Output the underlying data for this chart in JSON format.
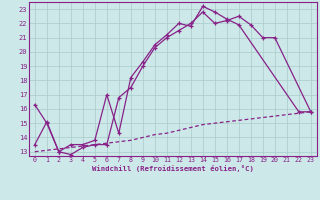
{
  "xlabel": "Windchill (Refroidissement éolien,°C)",
  "bg_color": "#cce8e8",
  "line_color": "#882288",
  "xlim": [
    -0.5,
    23.5
  ],
  "ylim": [
    12.7,
    23.5
  ],
  "xticks": [
    0,
    1,
    2,
    3,
    4,
    5,
    6,
    7,
    8,
    9,
    10,
    11,
    12,
    13,
    14,
    15,
    16,
    17,
    18,
    19,
    20,
    21,
    22,
    23
  ],
  "yticks": [
    13,
    14,
    15,
    16,
    17,
    18,
    19,
    20,
    21,
    22,
    23
  ],
  "line1_x": [
    0,
    1,
    2,
    3,
    4,
    5,
    6,
    7,
    8,
    9,
    10,
    11,
    12,
    13,
    14,
    15,
    16,
    17,
    22,
    23
  ],
  "line1_y": [
    16.3,
    15.0,
    13.0,
    13.5,
    13.5,
    13.8,
    17.0,
    14.3,
    18.2,
    19.3,
    20.5,
    21.2,
    22.0,
    21.8,
    23.2,
    22.8,
    22.3,
    21.9,
    15.8,
    15.8
  ],
  "line2_x": [
    0,
    1,
    2,
    3,
    4,
    5,
    6,
    7,
    8,
    9,
    10,
    11,
    12,
    13,
    14,
    15,
    16,
    17,
    18,
    19,
    20,
    23
  ],
  "line2_y": [
    13.5,
    15.1,
    13.0,
    12.8,
    13.3,
    13.5,
    13.5,
    16.8,
    17.5,
    19.0,
    20.3,
    21.0,
    21.5,
    22.0,
    22.8,
    22.0,
    22.2,
    22.5,
    21.9,
    21.0,
    21.0,
    15.8
  ],
  "line3_x": [
    0,
    1,
    2,
    3,
    4,
    5,
    6,
    7,
    8,
    9,
    10,
    11,
    12,
    13,
    14,
    15,
    16,
    17,
    18,
    19,
    20,
    21,
    22,
    23
  ],
  "line3_y": [
    13.0,
    13.1,
    13.2,
    13.3,
    13.4,
    13.5,
    13.6,
    13.7,
    13.8,
    14.0,
    14.2,
    14.3,
    14.5,
    14.7,
    14.9,
    15.0,
    15.1,
    15.2,
    15.3,
    15.4,
    15.5,
    15.6,
    15.7,
    15.8
  ]
}
